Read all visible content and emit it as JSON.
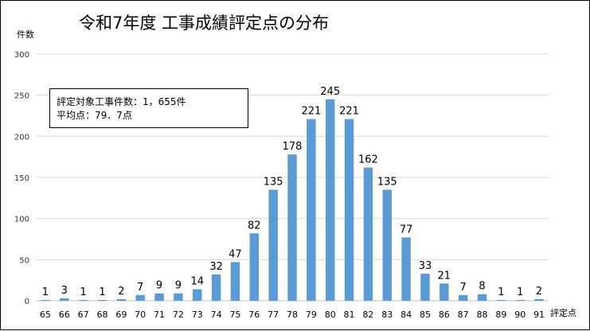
{
  "chart_data": {
    "type": "bar",
    "title": "令和7年度 工事成績評定点の分布",
    "ylabel": "件数",
    "xlabel": "評定点",
    "ylim": [
      0,
      300
    ],
    "yticks": [
      0,
      50,
      100,
      150,
      200,
      250,
      300
    ],
    "grid": true,
    "bar_color": "#5b9bd5",
    "categories": [
      "65",
      "66",
      "67",
      "68",
      "69",
      "70",
      "71",
      "72",
      "73",
      "74",
      "75",
      "76",
      "77",
      "78",
      "79",
      "80",
      "81",
      "82",
      "83",
      "84",
      "85",
      "86",
      "87",
      "88",
      "89",
      "90",
      "91"
    ],
    "values": [
      1,
      3,
      1,
      1,
      2,
      7,
      9,
      9,
      14,
      32,
      47,
      82,
      135,
      178,
      221,
      245,
      221,
      162,
      135,
      77,
      33,
      21,
      7,
      8,
      1,
      1,
      2
    ],
    "annotation": {
      "line1": "評定対象工事件数：1，655件",
      "line2": "平均点：79．7点"
    }
  }
}
